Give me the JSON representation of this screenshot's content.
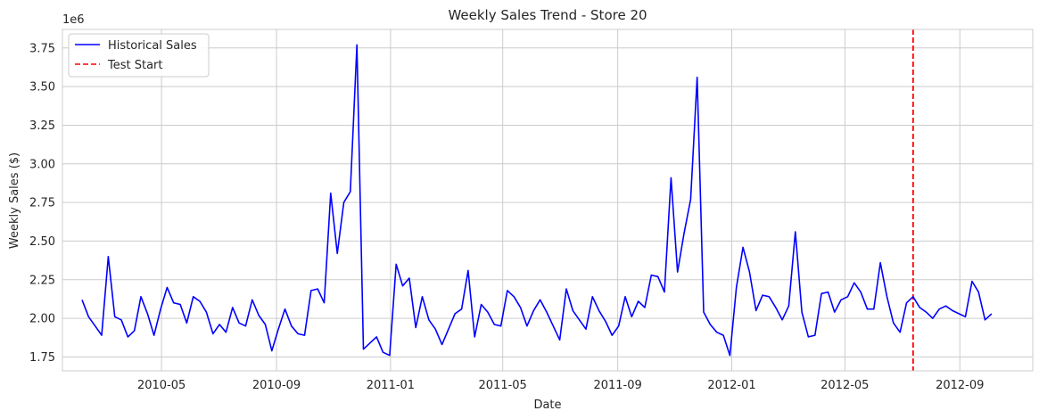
{
  "chart_data": {
    "type": "line",
    "title": "Weekly Sales Trend - Store 20",
    "xlabel": "Date",
    "ylabel": "Weekly Sales ($)",
    "y_offset_label": "1e6",
    "ylim": [
      1.66,
      3.87
    ],
    "xlim": [
      "2010-01-15",
      "2012-11-18"
    ],
    "grid": true,
    "legend_position": "top-left",
    "x_ticks": [
      {
        "date": "2010-05-01",
        "label": "2010-05"
      },
      {
        "date": "2010-09-01",
        "label": "2010-09"
      },
      {
        "date": "2011-01-01",
        "label": "2011-01"
      },
      {
        "date": "2011-05-01",
        "label": "2011-05"
      },
      {
        "date": "2011-09-01",
        "label": "2011-09"
      },
      {
        "date": "2012-01-01",
        "label": "2012-01"
      },
      {
        "date": "2012-05-01",
        "label": "2012-05"
      },
      {
        "date": "2012-09-01",
        "label": "2012-09"
      }
    ],
    "y_ticks": [
      {
        "value": 1.75,
        "label": "1.75"
      },
      {
        "value": 2.0,
        "label": "2.00"
      },
      {
        "value": 2.25,
        "label": "2.25"
      },
      {
        "value": 2.5,
        "label": "2.50"
      },
      {
        "value": 2.75,
        "label": "2.75"
      },
      {
        "value": 3.0,
        "label": "3.00"
      },
      {
        "value": 3.25,
        "label": "3.25"
      },
      {
        "value": 3.5,
        "label": "3.50"
      },
      {
        "value": 3.75,
        "label": "3.75"
      }
    ],
    "series": [
      {
        "name": "Historical Sales",
        "color": "#0000ff",
        "style": "solid",
        "points": [
          [
            "2010-02-05",
            2.12
          ],
          [
            "2010-02-12",
            2.01
          ],
          [
            "2010-02-19",
            1.95
          ],
          [
            "2010-02-26",
            1.89
          ],
          [
            "2010-03-05",
            2.4
          ],
          [
            "2010-03-12",
            2.01
          ],
          [
            "2010-03-19",
            1.99
          ],
          [
            "2010-03-26",
            1.88
          ],
          [
            "2010-04-02",
            1.92
          ],
          [
            "2010-04-09",
            2.14
          ],
          [
            "2010-04-16",
            2.03
          ],
          [
            "2010-04-23",
            1.89
          ],
          [
            "2010-04-30",
            2.06
          ],
          [
            "2010-05-07",
            2.2
          ],
          [
            "2010-05-14",
            2.1
          ],
          [
            "2010-05-21",
            2.09
          ],
          [
            "2010-05-28",
            1.97
          ],
          [
            "2010-06-04",
            2.14
          ],
          [
            "2010-06-11",
            2.11
          ],
          [
            "2010-06-18",
            2.04
          ],
          [
            "2010-06-25",
            1.9
          ],
          [
            "2010-07-02",
            1.96
          ],
          [
            "2010-07-09",
            1.91
          ],
          [
            "2010-07-16",
            2.07
          ],
          [
            "2010-07-23",
            1.97
          ],
          [
            "2010-07-30",
            1.95
          ],
          [
            "2010-08-06",
            2.12
          ],
          [
            "2010-08-13",
            2.02
          ],
          [
            "2010-08-20",
            1.96
          ],
          [
            "2010-08-27",
            1.79
          ],
          [
            "2010-09-03",
            1.93
          ],
          [
            "2010-09-10",
            2.06
          ],
          [
            "2010-09-17",
            1.95
          ],
          [
            "2010-09-24",
            1.9
          ],
          [
            "2010-10-01",
            1.89
          ],
          [
            "2010-10-08",
            2.18
          ],
          [
            "2010-10-15",
            2.19
          ],
          [
            "2010-10-22",
            2.1
          ],
          [
            "2010-10-29",
            2.81
          ],
          [
            "2010-11-05",
            2.42
          ],
          [
            "2010-11-12",
            2.75
          ],
          [
            "2010-11-19",
            2.82
          ],
          [
            "2010-11-26",
            3.77
          ],
          [
            "2010-12-03",
            1.8
          ],
          [
            "2010-12-10",
            1.84
          ],
          [
            "2010-12-17",
            1.88
          ],
          [
            "2010-12-24",
            1.78
          ],
          [
            "2010-12-31",
            1.76
          ],
          [
            "2011-01-07",
            2.35
          ],
          [
            "2011-01-14",
            2.21
          ],
          [
            "2011-01-21",
            2.26
          ],
          [
            "2011-01-28",
            1.94
          ],
          [
            "2011-02-04",
            2.14
          ],
          [
            "2011-02-11",
            1.99
          ],
          [
            "2011-02-18",
            1.93
          ],
          [
            "2011-02-25",
            1.83
          ],
          [
            "2011-03-04",
            1.93
          ],
          [
            "2011-03-11",
            2.03
          ],
          [
            "2011-03-18",
            2.06
          ],
          [
            "2011-03-25",
            2.31
          ],
          [
            "2011-04-01",
            1.88
          ],
          [
            "2011-04-08",
            2.09
          ],
          [
            "2011-04-15",
            2.04
          ],
          [
            "2011-04-22",
            1.96
          ],
          [
            "2011-04-29",
            1.95
          ],
          [
            "2011-05-06",
            2.18
          ],
          [
            "2011-05-13",
            2.14
          ],
          [
            "2011-05-20",
            2.07
          ],
          [
            "2011-05-27",
            1.95
          ],
          [
            "2011-06-03",
            2.05
          ],
          [
            "2011-06-10",
            2.12
          ],
          [
            "2011-06-17",
            2.04
          ],
          [
            "2011-06-24",
            1.95
          ],
          [
            "2011-07-01",
            1.86
          ],
          [
            "2011-07-08",
            2.19
          ],
          [
            "2011-07-15",
            2.05
          ],
          [
            "2011-07-22",
            1.99
          ],
          [
            "2011-07-29",
            1.93
          ],
          [
            "2011-08-05",
            2.14
          ],
          [
            "2011-08-12",
            2.05
          ],
          [
            "2011-08-19",
            1.98
          ],
          [
            "2011-08-26",
            1.89
          ],
          [
            "2011-09-02",
            1.95
          ],
          [
            "2011-09-09",
            2.14
          ],
          [
            "2011-09-16",
            2.01
          ],
          [
            "2011-09-23",
            2.11
          ],
          [
            "2011-09-30",
            2.07
          ],
          [
            "2011-10-07",
            2.28
          ],
          [
            "2011-10-14",
            2.27
          ],
          [
            "2011-10-21",
            2.17
          ],
          [
            "2011-10-28",
            2.91
          ],
          [
            "2011-11-04",
            2.3
          ],
          [
            "2011-11-11",
            2.55
          ],
          [
            "2011-11-18",
            2.77
          ],
          [
            "2011-11-25",
            3.56
          ],
          [
            "2011-12-02",
            2.04
          ],
          [
            "2011-12-09",
            1.96
          ],
          [
            "2011-12-16",
            1.91
          ],
          [
            "2011-12-23",
            1.89
          ],
          [
            "2011-12-30",
            1.76
          ],
          [
            "2012-01-06",
            2.2
          ],
          [
            "2012-01-13",
            2.46
          ],
          [
            "2012-01-20",
            2.3
          ],
          [
            "2012-01-27",
            2.05
          ],
          [
            "2012-02-03",
            2.15
          ],
          [
            "2012-02-10",
            2.14
          ],
          [
            "2012-02-17",
            2.07
          ],
          [
            "2012-02-24",
            1.99
          ],
          [
            "2012-03-02",
            2.08
          ],
          [
            "2012-03-09",
            2.56
          ],
          [
            "2012-03-16",
            2.04
          ],
          [
            "2012-03-23",
            1.88
          ],
          [
            "2012-03-30",
            1.89
          ],
          [
            "2012-04-06",
            2.16
          ],
          [
            "2012-04-13",
            2.17
          ],
          [
            "2012-04-20",
            2.04
          ],
          [
            "2012-04-27",
            2.12
          ],
          [
            "2012-05-04",
            2.14
          ],
          [
            "2012-05-11",
            2.23
          ],
          [
            "2012-05-18",
            2.17
          ],
          [
            "2012-05-25",
            2.06
          ],
          [
            "2012-06-01",
            2.06
          ],
          [
            "2012-06-08",
            2.36
          ],
          [
            "2012-06-15",
            2.14
          ],
          [
            "2012-06-22",
            1.97
          ],
          [
            "2012-06-29",
            1.91
          ],
          [
            "2012-07-06",
            2.1
          ],
          [
            "2012-07-13",
            2.14
          ],
          [
            "2012-07-20",
            2.07
          ],
          [
            "2012-07-27",
            2.04
          ],
          [
            "2012-08-03",
            2.0
          ],
          [
            "2012-08-10",
            2.06
          ],
          [
            "2012-08-17",
            2.08
          ],
          [
            "2012-08-24",
            2.05
          ],
          [
            "2012-08-31",
            2.03
          ],
          [
            "2012-09-07",
            2.01
          ],
          [
            "2012-09-14",
            2.24
          ],
          [
            "2012-09-21",
            2.17
          ],
          [
            "2012-09-28",
            1.99
          ],
          [
            "2012-10-05",
            2.03
          ]
        ]
      }
    ],
    "reference_lines": [
      {
        "name": "Test Start",
        "date": "2012-07-13",
        "color": "#ff0000",
        "style": "dashed"
      }
    ]
  }
}
